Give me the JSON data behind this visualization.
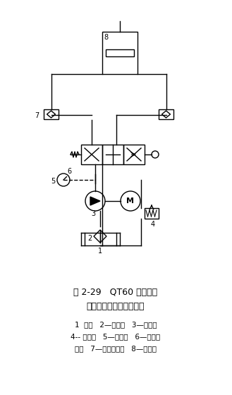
{
  "title_line1": "图 2-29   QT60 型塔式起",
  "title_line2": "重机升降液压系统原理图",
  "legend_line1": "1  油箱   2—过滤器   3—齿轮泵",
  "legend_line2": "4-- 溢流阀   5—压力表   6—手动换",
  "legend_line3": "向阀   7—双向液压锁   8—液压缸",
  "bg_color": "#ffffff",
  "line_color": "#000000",
  "font_size_title": 9,
  "font_size_legend": 7.5
}
